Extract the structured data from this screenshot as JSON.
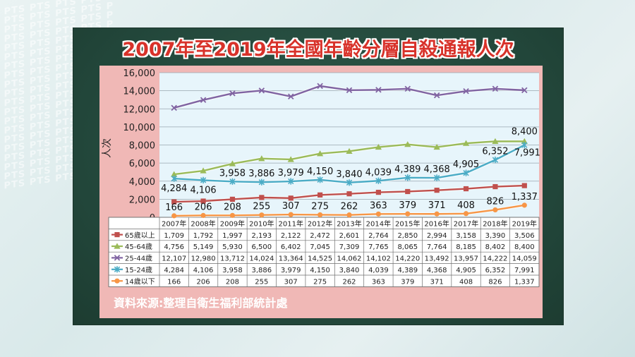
{
  "watermark": "PTS",
  "title": "2007年至2019年全國年齡分層自殺通報人次",
  "source": "資料來源:整理自衛生福利部統計處",
  "colors": {
    "s65": "#c0504d",
    "s45": "#9bbb59",
    "s25": "#8064a2",
    "s15": "#4bacc6",
    "s14": "#f79646"
  },
  "chart_data": {
    "type": "line",
    "title": "2007年至2019年全國年齡分層自殺通報人次",
    "ylabel": "人次",
    "xlabel": "",
    "ylim": [
      0,
      16000
    ],
    "y_ticks": [
      "0",
      "2,000",
      "4,000",
      "6,000",
      "8,000",
      "10,000",
      "12,000",
      "14,000",
      "16,000"
    ],
    "categories": [
      "2007年",
      "2008年",
      "2009年",
      "2010年",
      "2011年",
      "2012年",
      "2013年",
      "2014年",
      "2015年",
      "2016年",
      "2017年",
      "2018年",
      "2019年"
    ],
    "grid": true,
    "legend": "data-table",
    "series": [
      {
        "name": "65歲以上",
        "color": "#c0504d",
        "marker": "square",
        "values": [
          1709,
          1792,
          1997,
          2193,
          2122,
          2472,
          2601,
          2764,
          2850,
          2994,
          3158,
          3390,
          3506
        ],
        "display": [
          "1,709",
          "1,792",
          "1,997",
          "2,193",
          "2,122",
          "2,472",
          "2,601",
          "2,764",
          "2,850",
          "2,994",
          "3,158",
          "3,390",
          "3,506"
        ]
      },
      {
        "name": "45-64歲",
        "color": "#9bbb59",
        "marker": "triangle",
        "values": [
          4756,
          5149,
          5930,
          6500,
          6402,
          7045,
          7309,
          7765,
          8065,
          7764,
          8185,
          8402,
          8400
        ],
        "display": [
          "4,756",
          "5,149",
          "5,930",
          "6,500",
          "6,402",
          "7,045",
          "7,309",
          "7,765",
          "8,065",
          "7,764",
          "8,185",
          "8,402",
          "8,400"
        ]
      },
      {
        "name": "25-44歲",
        "color": "#8064a2",
        "marker": "x",
        "values": [
          12107,
          12980,
          13712,
          14024,
          13364,
          14525,
          14062,
          14102,
          14220,
          13492,
          13957,
          14222,
          14059
        ],
        "display": [
          "12,107",
          "12,980",
          "13,712",
          "14,024",
          "13,364",
          "14,525",
          "14,062",
          "14,102",
          "14,220",
          "13,492",
          "13,957",
          "14,222",
          "14,059"
        ]
      },
      {
        "name": "15-24歲",
        "color": "#4bacc6",
        "marker": "star",
        "values": [
          4284,
          4106,
          3958,
          3886,
          3979,
          4150,
          3840,
          4039,
          4389,
          4368,
          4905,
          6352,
          7991
        ],
        "display": [
          "4,284",
          "4,106",
          "3,958",
          "3,886",
          "3,979",
          "4,150",
          "3,840",
          "4,039",
          "4,389",
          "4,368",
          "4,905",
          "6,352",
          "7,991"
        ]
      },
      {
        "name": "14歲以下",
        "color": "#f79646",
        "marker": "circle",
        "values": [
          166,
          206,
          208,
          255,
          307,
          275,
          262,
          363,
          379,
          371,
          408,
          826,
          1337
        ],
        "display": [
          "166",
          "206",
          "208",
          "255",
          "307",
          "275",
          "262",
          "363",
          "379",
          "371",
          "408",
          "826",
          "1,337"
        ]
      }
    ],
    "data_labels": {
      "15-24歲": [
        "4,284",
        "4,106",
        "3,958",
        "3,886",
        "3,979",
        "4,150",
        "3,840",
        "4,039",
        "4,389",
        "4,368",
        "4,905",
        "6,352",
        "7,991"
      ],
      "14歲以下": [
        "166",
        "206",
        "208",
        "255",
        "307",
        "275",
        "262",
        "363",
        "379",
        "371",
        "408",
        "826",
        "1,337"
      ],
      "45-64歲": [
        "",
        "",
        "",
        "",
        "",
        "",
        "",
        "",
        "",
        "",
        "",
        "",
        "8,400"
      ]
    }
  }
}
